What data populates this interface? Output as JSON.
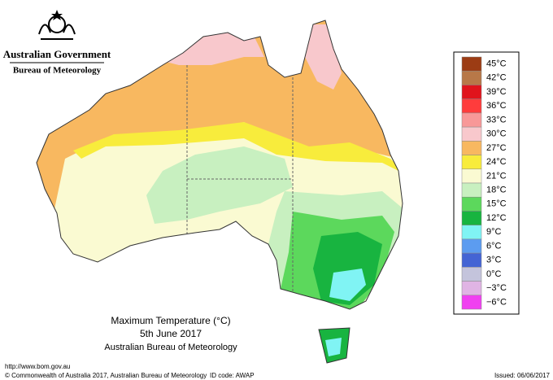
{
  "header": {
    "title": "Australian Government",
    "subtitle": "Bureau of Meteorology"
  },
  "map": {
    "title": "Maximum Temperature (°C)",
    "date": "5th June 2017",
    "source": "Australian Bureau of Meteorology"
  },
  "legend": {
    "items": [
      {
        "label": "45°C",
        "color": "#9c3c14"
      },
      {
        "label": "42°C",
        "color": "#b87848"
      },
      {
        "label": "39°C",
        "color": "#e0141c"
      },
      {
        "label": "36°C",
        "color": "#ff3c3c"
      },
      {
        "label": "33°C",
        "color": "#f89898"
      },
      {
        "label": "30°C",
        "color": "#f8c8cc"
      },
      {
        "label": "27°C",
        "color": "#f8b860"
      },
      {
        "label": "24°C",
        "color": "#f8ec3c"
      },
      {
        "label": "21°C",
        "color": "#fafad2"
      },
      {
        "label": "18°C",
        "color": "#c8f0c0"
      },
      {
        "label": "15°C",
        "color": "#5cd85c"
      },
      {
        "label": "12°C",
        "color": "#18b440"
      },
      {
        "label": "9°C",
        "color": "#80f4f4"
      },
      {
        "label": "6°C",
        "color": "#5c9cf0"
      },
      {
        "label": "3°C",
        "color": "#4464d4"
      },
      {
        "label": "0°C",
        "color": "#c4c4dc"
      },
      {
        "label": "−3°C",
        "color": "#e0b4e4"
      },
      {
        "label": "−6°C",
        "color": "#f040f0"
      }
    ]
  },
  "footer": {
    "url": "http://www.bom.gov.au",
    "copyright": "© Commonwealth of Australia 2017, Australian Bureau of Meteorology",
    "id_code": "ID code: AWAP",
    "issued": "Issued: 06/06/2017"
  }
}
